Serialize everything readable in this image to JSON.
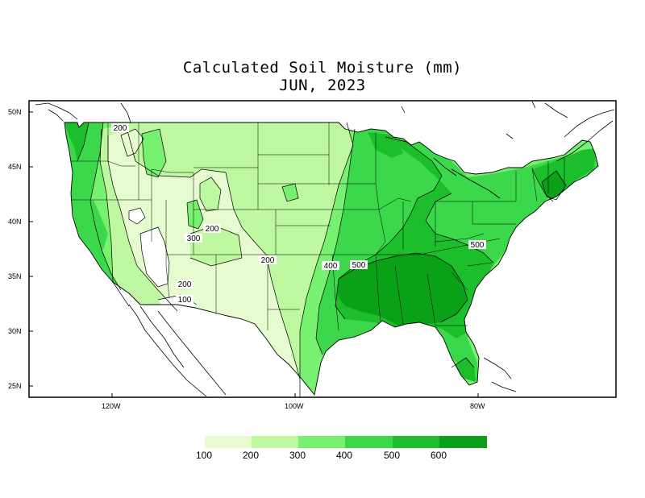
{
  "title": "Calculated Soil Moisture (mm)",
  "subtitle": "JUN, 2023",
  "lat_ticks": [
    "50N",
    "45N",
    "40N",
    "35N",
    "30N",
    "25N"
  ],
  "lon_ticks": [
    "120W",
    "100W",
    "80W"
  ],
  "legend": {
    "labels": [
      "100",
      "200",
      "300",
      "400",
      "500",
      "600"
    ],
    "colors": [
      "#e6fcd0",
      "#bef8a0",
      "#78f070",
      "#3cd84c",
      "#1cbe2c",
      "#0aa018"
    ]
  },
  "contour_labels": [
    "200",
    "300",
    "200",
    "200",
    "200",
    "100",
    "400",
    "500",
    "500"
  ],
  "colors": {
    "below_100": "#ffffff",
    "c100": "#e6fcd0",
    "c200": "#bef8a0",
    "c300": "#78f070",
    "c400": "#3cd84c",
    "c500": "#1cbe2c",
    "c600": "#0aa018"
  }
}
